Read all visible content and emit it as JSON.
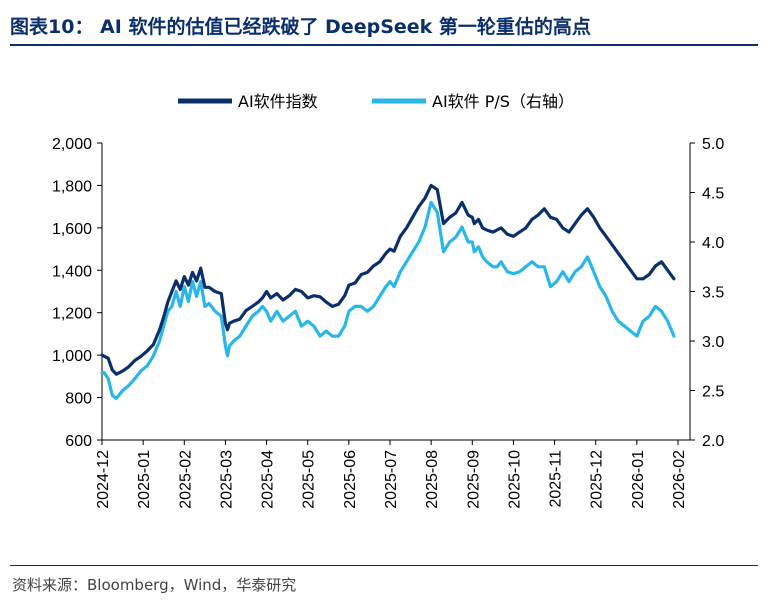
{
  "header": {
    "title": "图表10： AI 软件的估值已经跌破了 DeepSeek 第一轮重估的高点"
  },
  "footer": {
    "source": "资料来源：Bloomberg，Wind，华泰研究"
  },
  "colors": {
    "index_series": "#0b2f6b",
    "ps_series": "#29b6e8",
    "title": "#0b2f6b"
  },
  "chart_data": {
    "type": "line",
    "title": "AI 软件的估值已经跌破了 DeepSeek 第一轮重估的高点",
    "x_ticks": [
      "2024-12",
      "2025-01",
      "2025-02",
      "2025-03",
      "2025-04",
      "2025-05",
      "2025-06",
      "2025-07",
      "2025-08",
      "2025-09",
      "2025-10",
      "2025-11",
      "2025-12",
      "2026-01",
      "2026-02"
    ],
    "left_axis": {
      "ylim": [
        600,
        2000
      ],
      "ticks": [
        "600",
        "800",
        "1,000",
        "1,200",
        "1,400",
        "1,600",
        "1,800",
        "2,000"
      ]
    },
    "right_axis": {
      "ylim": [
        2.0,
        5.0
      ],
      "ticks": [
        "2.0",
        "2.5",
        "3.0",
        "3.5",
        "4.0",
        "4.5",
        "5.0"
      ]
    },
    "series": [
      {
        "name": "AI软件指数",
        "axis": "left",
        "x": [
          0,
          0.05,
          0.15,
          0.25,
          0.35,
          0.5,
          0.65,
          0.8,
          0.95,
          1.1,
          1.25,
          1.4,
          1.5,
          1.6,
          1.7,
          1.8,
          1.9,
          2.0,
          2.1,
          2.2,
          2.3,
          2.4,
          2.5,
          2.6,
          2.75,
          2.9,
          3.0,
          3.05,
          3.1,
          3.2,
          3.35,
          3.5,
          3.65,
          3.8,
          3.9,
          4.0,
          4.1,
          4.25,
          4.4,
          4.55,
          4.7,
          4.85,
          5.0,
          5.15,
          5.3,
          5.45,
          5.6,
          5.75,
          5.9,
          6.0,
          6.15,
          6.3,
          6.45,
          6.6,
          6.75,
          6.9,
          7.0,
          7.1,
          7.25,
          7.4,
          7.55,
          7.7,
          7.85,
          8.0,
          8.15,
          8.3,
          8.45,
          8.6,
          8.75,
          8.9,
          9.0,
          9.05,
          9.15,
          9.25,
          9.35,
          9.5,
          9.6,
          9.7,
          9.85,
          10.0,
          10.15,
          10.3,
          10.45,
          10.6,
          10.75,
          10.9,
          11.05,
          11.2,
          11.35,
          11.5,
          11.65,
          11.8,
          11.95,
          12.1,
          12.25,
          12.4,
          12.55,
          12.7,
          12.85,
          13.0,
          13.15,
          13.3,
          13.45,
          13.6,
          13.75,
          13.9
        ],
        "values": [
          1000,
          995,
          985,
          930,
          910,
          925,
          945,
          975,
          995,
          1020,
          1050,
          1120,
          1180,
          1250,
          1300,
          1350,
          1310,
          1370,
          1330,
          1390,
          1350,
          1410,
          1320,
          1320,
          1300,
          1290,
          1150,
          1120,
          1150,
          1160,
          1170,
          1210,
          1230,
          1250,
          1270,
          1300,
          1270,
          1290,
          1260,
          1280,
          1310,
          1300,
          1270,
          1280,
          1275,
          1250,
          1230,
          1240,
          1280,
          1330,
          1340,
          1380,
          1390,
          1420,
          1440,
          1480,
          1500,
          1490,
          1560,
          1600,
          1650,
          1700,
          1740,
          1800,
          1780,
          1620,
          1650,
          1670,
          1720,
          1660,
          1650,
          1620,
          1640,
          1600,
          1590,
          1580,
          1590,
          1600,
          1570,
          1560,
          1580,
          1600,
          1640,
          1660,
          1690,
          1650,
          1640,
          1600,
          1580,
          1620,
          1660,
          1690,
          1650,
          1600,
          1560,
          1520,
          1480,
          1440,
          1400,
          1360,
          1360,
          1380,
          1420,
          1440,
          1400,
          1360
        ]
      },
      {
        "name": "AI软件 P/S（右轴）",
        "axis": "right",
        "x": [
          0,
          0.05,
          0.15,
          0.25,
          0.35,
          0.5,
          0.65,
          0.8,
          0.95,
          1.1,
          1.25,
          1.4,
          1.5,
          1.6,
          1.7,
          1.8,
          1.9,
          2.0,
          2.1,
          2.2,
          2.3,
          2.4,
          2.5,
          2.6,
          2.75,
          2.9,
          3.0,
          3.05,
          3.1,
          3.2,
          3.35,
          3.5,
          3.65,
          3.8,
          3.9,
          4.0,
          4.1,
          4.25,
          4.4,
          4.55,
          4.7,
          4.85,
          5.0,
          5.15,
          5.3,
          5.45,
          5.6,
          5.75,
          5.9,
          6.0,
          6.15,
          6.3,
          6.45,
          6.6,
          6.75,
          6.9,
          7.0,
          7.1,
          7.25,
          7.4,
          7.55,
          7.7,
          7.85,
          8.0,
          8.15,
          8.3,
          8.45,
          8.6,
          8.75,
          8.9,
          9.0,
          9.05,
          9.15,
          9.25,
          9.35,
          9.5,
          9.6,
          9.7,
          9.85,
          10.0,
          10.15,
          10.3,
          10.45,
          10.6,
          10.75,
          10.9,
          11.05,
          11.2,
          11.35,
          11.5,
          11.65,
          11.8,
          11.95,
          12.1,
          12.25,
          12.4,
          12.55,
          12.7,
          12.85,
          13.0,
          13.15,
          13.3,
          13.45,
          13.6,
          13.75,
          13.9
        ],
        "values": [
          2.68,
          2.68,
          2.62,
          2.45,
          2.42,
          2.5,
          2.55,
          2.62,
          2.7,
          2.75,
          2.85,
          3.0,
          3.15,
          3.3,
          3.35,
          3.5,
          3.35,
          3.55,
          3.4,
          3.6,
          3.45,
          3.6,
          3.35,
          3.38,
          3.3,
          3.25,
          2.95,
          2.85,
          2.95,
          3.0,
          3.05,
          3.15,
          3.25,
          3.3,
          3.35,
          3.3,
          3.2,
          3.3,
          3.2,
          3.25,
          3.3,
          3.15,
          3.2,
          3.15,
          3.05,
          3.1,
          3.05,
          3.05,
          3.15,
          3.3,
          3.35,
          3.35,
          3.3,
          3.35,
          3.45,
          3.55,
          3.6,
          3.55,
          3.7,
          3.8,
          3.9,
          4.0,
          4.15,
          4.4,
          4.3,
          3.9,
          4.0,
          4.05,
          4.15,
          4.0,
          4.0,
          3.9,
          3.95,
          3.85,
          3.8,
          3.75,
          3.75,
          3.8,
          3.7,
          3.68,
          3.7,
          3.75,
          3.8,
          3.75,
          3.75,
          3.55,
          3.6,
          3.7,
          3.6,
          3.7,
          3.75,
          3.85,
          3.7,
          3.55,
          3.45,
          3.3,
          3.2,
          3.15,
          3.1,
          3.05,
          3.2,
          3.25,
          3.35,
          3.3,
          3.2,
          3.05
        ]
      }
    ]
  }
}
